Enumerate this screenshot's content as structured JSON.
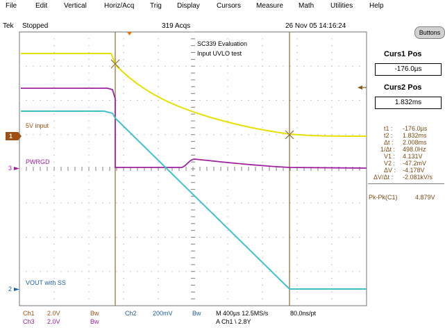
{
  "menu": [
    "File",
    "Edit",
    "Vertical",
    "Horiz/Acq",
    "Trig",
    "Display",
    "Cursors",
    "Measure",
    "Math",
    "Utilities",
    "Help"
  ],
  "status": {
    "brand": "Tek",
    "state": "Stopped",
    "acqs": "319 Acqs",
    "datetime": "26 Nov 05 14:16:24"
  },
  "annotation": {
    "line1": "SC339 Evaluation",
    "line2": "Input UVLO test"
  },
  "traces": {
    "ch1_label": "5V input",
    "ch3_label": "PWRGD",
    "ch2_label": "VOUT with SS",
    "ch1_marker": "1",
    "ch3_marker": "3",
    "ch2_marker": "2"
  },
  "panel": {
    "buttons_label": "Buttons",
    "curs1_title": "Curs1 Pos",
    "curs1_value": "-176.0µs",
    "curs2_title": "Curs2 Pos",
    "curs2_value": "1.832ms",
    "readouts": [
      {
        "k": "t1 :",
        "v": "-176.0µs"
      },
      {
        "k": "t2 :",
        "v": "1.832ms"
      },
      {
        "k": "Δt :",
        "v": "2.008ms"
      },
      {
        "k": "1/Δt :",
        "v": "498.0Hz"
      },
      {
        "k": "V1 :",
        "v": "4.131V"
      },
      {
        "k": "V2 :",
        "v": "-47.2mV"
      },
      {
        "k": "ΔV :",
        "v": "-4.178V"
      },
      {
        "k": "ΔV/Δt :",
        "v": "-2.081kV/s"
      }
    ],
    "measure_label": "Pk-Pk(C1)",
    "measure_value": "4.879V"
  },
  "bottom": {
    "ch1": "Ch1",
    "ch1_scale": "2.0V",
    "bw1": "Bw",
    "ch2": "Ch2",
    "ch2_scale": "200mV",
    "bw2": "Bw",
    "ch3": "Ch3",
    "ch3_scale": "2.0V",
    "bw3": "Bw",
    "timebase": "M 400µs 12.5MS/s",
    "rate": "80.0ns/pt",
    "trigger": "A  Ch1  \\  2.8Y"
  },
  "colors": {
    "ch1": "#e8e000",
    "ch2": "#40c0d0",
    "ch3": "#a020a0",
    "cursor": "#8a6a30",
    "grid": "#808080"
  }
}
